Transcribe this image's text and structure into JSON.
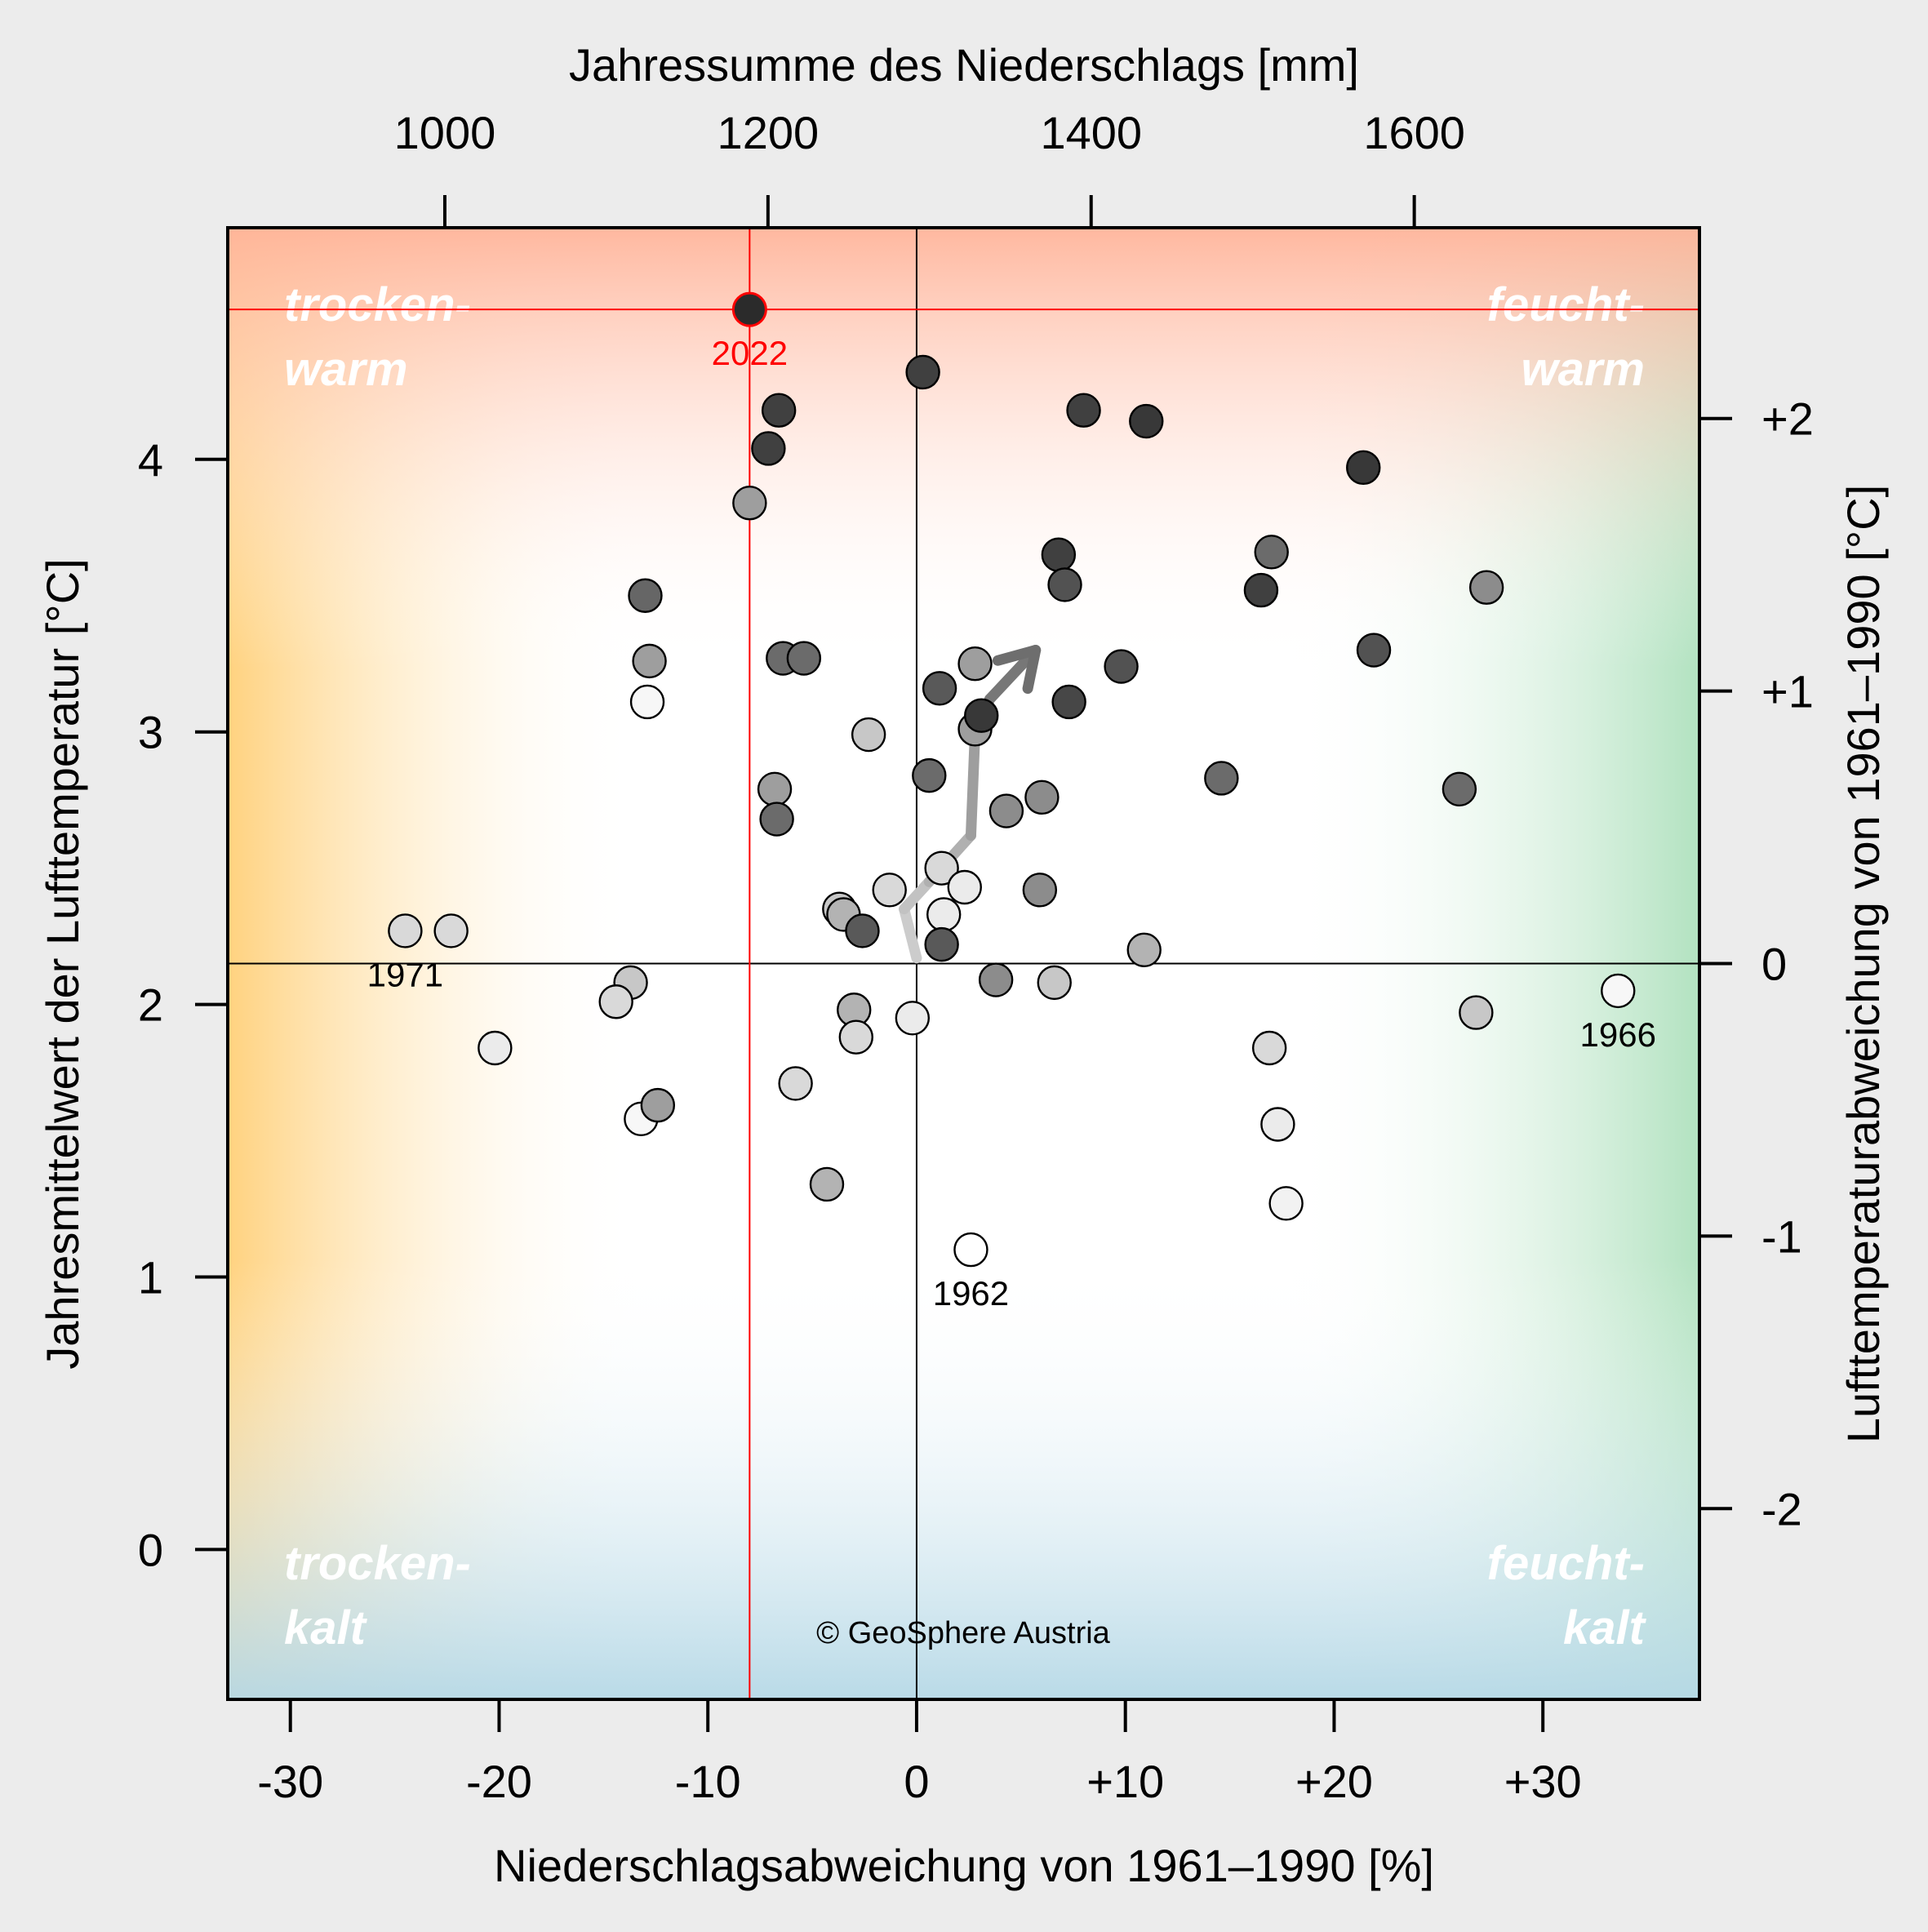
{
  "chart_data": {
    "type": "scatter",
    "xlabel_bottom": "Niederschlagsabweichung von 1961–1990 [%]",
    "xlabel_top": "Jahressumme des Niederschlags [mm]",
    "ylabel_left": "Jahresmittelwert der Lufttemperatur [°C]",
    "ylabel_right": "Lufttemperaturabweichung von 1961–1990 [°C]",
    "xlim": [
      -33,
      37.5
    ],
    "ylim": [
      -0.55,
      4.85
    ],
    "x_ticks": [
      -30,
      -20,
      -10,
      0,
      10,
      20,
      30
    ],
    "x_tick_labels": [
      "-30",
      "-20",
      "-10",
      "0",
      "+10",
      "+20",
      "+30"
    ],
    "y_ticks": [
      0,
      1,
      2,
      3,
      4
    ],
    "y_tick_labels": [
      "0",
      "1",
      "2",
      "3",
      "4"
    ],
    "top_ticks": [
      1000,
      1200,
      1400,
      1600
    ],
    "top_tick_labels": [
      "1000",
      "1200",
      "1400",
      "1600"
    ],
    "precip_reference_mm": 1292,
    "right_ticks": [
      2,
      1,
      0,
      -1,
      -2
    ],
    "right_tick_labels": [
      "+2",
      "+1",
      "0",
      "-1",
      "-2"
    ],
    "temp_reference_c": 2.15,
    "quadrants": {
      "top_left": [
        "trocken-",
        "warm"
      ],
      "top_right": [
        "feucht-",
        "warm"
      ],
      "bottom_left": [
        "trocken-",
        "kalt"
      ],
      "bottom_right": [
        "feucht-",
        "kalt"
      ]
    },
    "copyright": "© GeoSphere Austria",
    "highlight": {
      "label": "2022",
      "x": -8.0,
      "y": 4.55
    },
    "labelled_points": [
      {
        "label": "1971",
        "x": -24.5,
        "y": 2.27
      },
      {
        "label": "1966",
        "x": 33.6,
        "y": 2.05
      },
      {
        "label": "1962",
        "x": 2.6,
        "y": 1.1
      }
    ],
    "trend_arrow": [
      {
        "x": 0.0,
        "y": 2.17
      },
      {
        "x": -0.6,
        "y": 2.35
      },
      {
        "x": 0.6,
        "y": 2.45
      },
      {
        "x": 2.6,
        "y": 2.62
      },
      {
        "x": 2.8,
        "y": 3.0
      },
      {
        "x": 3.5,
        "y": 3.12
      },
      {
        "x": 5.7,
        "y": 3.3
      }
    ],
    "points": [
      {
        "x": -8.0,
        "y": 3.84,
        "g": 0.62
      },
      {
        "x": -6.6,
        "y": 4.18,
        "g": 0.25
      },
      {
        "x": -7.1,
        "y": 4.04,
        "g": 0.25
      },
      {
        "x": -13.0,
        "y": 3.5,
        "g": 0.4
      },
      {
        "x": -12.8,
        "y": 3.26,
        "g": 0.62
      },
      {
        "x": -12.9,
        "y": 3.11,
        "g": 0.97
      },
      {
        "x": -6.4,
        "y": 3.27,
        "g": 0.42
      },
      {
        "x": -5.4,
        "y": 3.27,
        "g": 0.42
      },
      {
        "x": -6.8,
        "y": 2.79,
        "g": 0.62
      },
      {
        "x": -6.7,
        "y": 2.68,
        "g": 0.42
      },
      {
        "x": -2.3,
        "y": 2.99,
        "g": 0.78
      },
      {
        "x": 0.3,
        "y": 4.32,
        "g": 0.25
      },
      {
        "x": 8.0,
        "y": 4.18,
        "g": 0.25
      },
      {
        "x": 11.0,
        "y": 4.14,
        "g": 0.22
      },
      {
        "x": 21.4,
        "y": 3.97,
        "g": 0.22
      },
      {
        "x": 6.8,
        "y": 3.65,
        "g": 0.25
      },
      {
        "x": 7.1,
        "y": 3.54,
        "g": 0.32
      },
      {
        "x": 17.0,
        "y": 3.66,
        "g": 0.42
      },
      {
        "x": 16.5,
        "y": 3.52,
        "g": 0.25
      },
      {
        "x": 27.3,
        "y": 3.53,
        "g": 0.55
      },
      {
        "x": 21.9,
        "y": 3.3,
        "g": 0.32
      },
      {
        "x": 2.8,
        "y": 3.25,
        "g": 0.62
      },
      {
        "x": 1.1,
        "y": 3.16,
        "g": 0.35
      },
      {
        "x": 7.3,
        "y": 3.11,
        "g": 0.28
      },
      {
        "x": 9.8,
        "y": 3.24,
        "g": 0.32
      },
      {
        "x": 2.8,
        "y": 3.01,
        "g": 0.62
      },
      {
        "x": 3.1,
        "y": 3.06,
        "g": 0.22
      },
      {
        "x": 0.6,
        "y": 2.84,
        "g": 0.42
      },
      {
        "x": 14.6,
        "y": 2.83,
        "g": 0.42
      },
      {
        "x": 26.0,
        "y": 2.79,
        "g": 0.42
      },
      {
        "x": 6.0,
        "y": 2.76,
        "g": 0.55
      },
      {
        "x": 4.3,
        "y": 2.71,
        "g": 0.55
      },
      {
        "x": 1.2,
        "y": 2.5,
        "g": 0.85
      },
      {
        "x": 2.3,
        "y": 2.43,
        "g": 0.92
      },
      {
        "x": -1.3,
        "y": 2.42,
        "g": 0.85
      },
      {
        "x": 1.3,
        "y": 2.33,
        "g": 0.92
      },
      {
        "x": 5.9,
        "y": 2.42,
        "g": 0.55
      },
      {
        "x": -3.7,
        "y": 2.35,
        "g": 0.78
      },
      {
        "x": -3.5,
        "y": 2.33,
        "g": 0.7
      },
      {
        "x": -2.6,
        "y": 2.27,
        "g": 0.35
      },
      {
        "x": 1.2,
        "y": 2.22,
        "g": 0.35
      },
      {
        "x": 10.9,
        "y": 2.2,
        "g": 0.7
      },
      {
        "x": 3.8,
        "y": 2.09,
        "g": 0.55
      },
      {
        "x": 6.6,
        "y": 2.08,
        "g": 0.78
      },
      {
        "x": -22.3,
        "y": 2.27,
        "g": 0.85
      },
      {
        "x": -13.7,
        "y": 2.08,
        "g": 0.78
      },
      {
        "x": -14.4,
        "y": 2.01,
        "g": 0.85
      },
      {
        "x": -20.2,
        "y": 1.84,
        "g": 0.92
      },
      {
        "x": -13.2,
        "y": 1.58,
        "g": 0.97
      },
      {
        "x": -12.4,
        "y": 1.63,
        "g": 0.62
      },
      {
        "x": -3.0,
        "y": 1.98,
        "g": 0.7
      },
      {
        "x": -0.2,
        "y": 1.95,
        "g": 0.92
      },
      {
        "x": -2.9,
        "y": 1.88,
        "g": 0.85
      },
      {
        "x": -5.8,
        "y": 1.71,
        "g": 0.85
      },
      {
        "x": -4.3,
        "y": 1.34,
        "g": 0.7
      },
      {
        "x": 16.9,
        "y": 1.84,
        "g": 0.85
      },
      {
        "x": 17.3,
        "y": 1.56,
        "g": 0.92
      },
      {
        "x": 17.7,
        "y": 1.27,
        "g": 0.95
      },
      {
        "x": 26.8,
        "y": 1.97,
        "g": 0.78
      },
      {
        "x": 33.6,
        "y": 2.05,
        "g": 0.97
      },
      {
        "x": 2.6,
        "y": 1.1,
        "g": 1.0
      },
      {
        "x": -24.5,
        "y": 2.27,
        "g": 0.85
      }
    ]
  }
}
